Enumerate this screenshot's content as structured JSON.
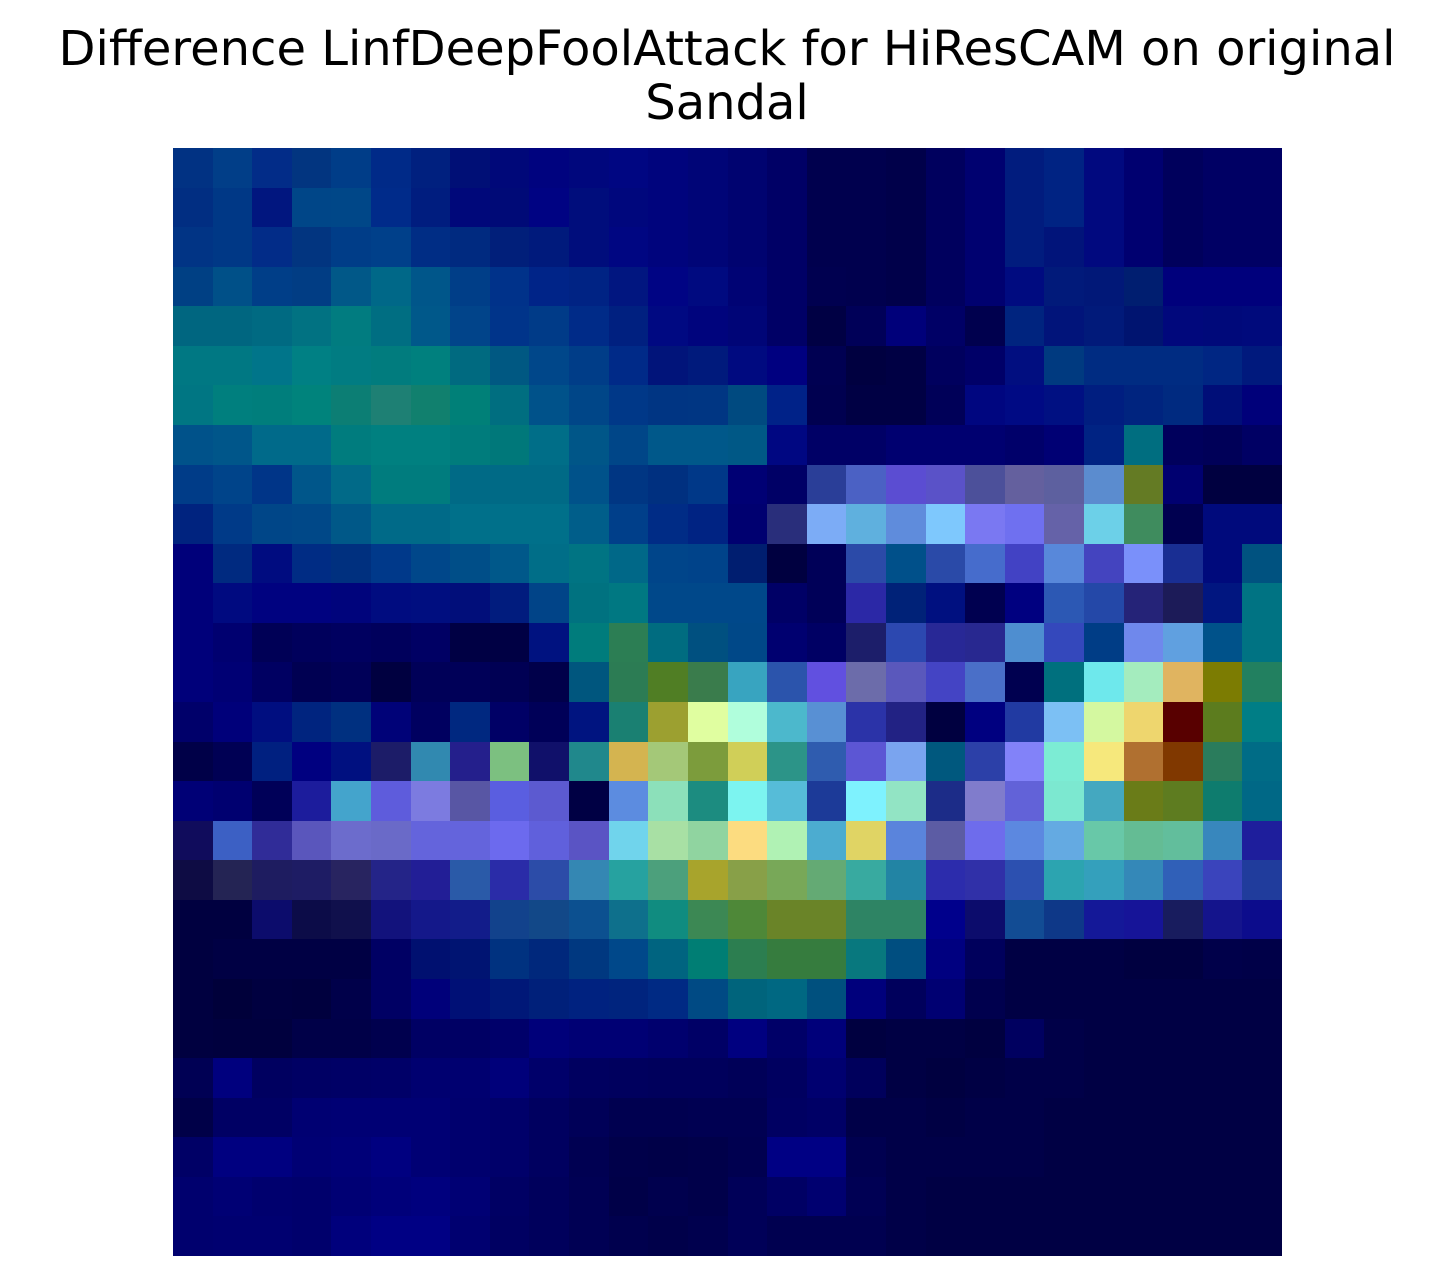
{
  "title": {
    "line1": "Difference LinfDeepFoolAttack for HiResCAM on original",
    "line2": "Sandal"
  },
  "image": {
    "grid_rows": 28,
    "grid_cols": 28,
    "rows": [
      [
        "#013283",
        "#013e88",
        "#022c88",
        "#023580",
        "#003d88",
        "#002a88",
        "#00207f",
        "#000f76",
        "#000879",
        "#00037f",
        "#00077d",
        "#000682",
        "#00047d",
        "#000577",
        "#000370",
        "#000066",
        "#00004e",
        "#00004e",
        "#00004a",
        "#00005e",
        "#000170",
        "#011c7e",
        "#002383",
        "#01097f",
        "#000070",
        "#00005c",
        "#000064",
        "#000064"
      ],
      [
        "#012e82",
        "#003886",
        "#01167f",
        "#004688",
        "#004788",
        "#002b8a",
        "#001d7f",
        "#00087a",
        "#000a77",
        "#000383",
        "#000d7c",
        "#00077d",
        "#00047d",
        "#000577",
        "#000370",
        "#000066",
        "#00004e",
        "#00004e",
        "#00004a",
        "#00005e",
        "#000170",
        "#011c7e",
        "#002383",
        "#01097f",
        "#000070",
        "#00005c",
        "#000064",
        "#000064"
      ],
      [
        "#013485",
        "#003886",
        "#022c88",
        "#023580",
        "#003d88",
        "#00408a",
        "#002d85",
        "#002a80",
        "#011f7a",
        "#001a7c",
        "#000d7c",
        "#000682",
        "#00047d",
        "#000577",
        "#000370",
        "#000066",
        "#00004e",
        "#00004e",
        "#00004a",
        "#00005e",
        "#000170",
        "#011c7e",
        "#01147a",
        "#01097f",
        "#000070",
        "#00005c",
        "#000064",
        "#000064"
      ],
      [
        "#004084",
        "#005088",
        "#003e88",
        "#013d84",
        "#015888",
        "#006888",
        "#00568a",
        "#003e88",
        "#00328a",
        "#002488",
        "#002384",
        "#011680",
        "#000484",
        "#000a80",
        "#000374",
        "#000066",
        "#000050",
        "#00004e",
        "#00004a",
        "#00005e",
        "#000170",
        "#000b80",
        "#011a7a",
        "#011878",
        "#001e70",
        "#00007c",
        "#00007c",
        "#00007c"
      ],
      [
        "#006680",
        "#006680",
        "#006a82",
        "#017282",
        "#017c80",
        "#006e82",
        "#00588a",
        "#01448a",
        "#00348a",
        "#003b88",
        "#002b88",
        "#002080",
        "#000982",
        "#00047d",
        "#000577",
        "#000066",
        "#000044",
        "#000058",
        "#00007a",
        "#000066",
        "#00004e",
        "#00247f",
        "#01147a",
        "#011a7a",
        "#001470",
        "#01087c",
        "#00097a",
        "#000a7c"
      ],
      [
        "#007883",
        "#007883",
        "#00758a",
        "#008084",
        "#017c82",
        "#017c7e",
        "#00807e",
        "#006a80",
        "#005882",
        "#00478a",
        "#003d88",
        "#002a88",
        "#01147a",
        "#001a7c",
        "#000a80",
        "#000080",
        "#000052",
        "#000040",
        "#000044",
        "#00005e",
        "#000068",
        "#010e80",
        "#003a80",
        "#002c82",
        "#002c82",
        "#002c82",
        "#002683",
        "#00197d"
      ],
      [
        "#007683",
        "#007f7e",
        "#007e7c",
        "#00837c",
        "#0c7e74",
        "#1e8074",
        "#11806e",
        "#008078",
        "#006e80",
        "#00528a",
        "#004688",
        "#003888",
        "#003583",
        "#003683",
        "#004a80",
        "#002288",
        "#000050",
        "#000044",
        "#000044",
        "#000058",
        "#000680",
        "#000a84",
        "#001082",
        "#001e80",
        "#00247f",
        "#002a80",
        "#000e78",
        "#00007a"
      ],
      [
        "#00528a",
        "#00568a",
        "#006a8a",
        "#006a8a",
        "#007c7e",
        "#008080",
        "#008080",
        "#007c7c",
        "#00787a",
        "#006e88",
        "#005688",
        "#004688",
        "#00588a",
        "#00588a",
        "#005886",
        "#000782",
        "#000066",
        "#000066",
        "#000070",
        "#000070",
        "#000070",
        "#00006a",
        "#000074",
        "#002383",
        "#006e80",
        "#00005c",
        "#000058",
        "#000064"
      ],
      [
        "#003c88",
        "#00448a",
        "#003588",
        "#00568a",
        "#016a88",
        "#007c7e",
        "#007c7e",
        "#006a86",
        "#006a86",
        "#006a86",
        "#00528a",
        "#003683",
        "#003080",
        "#003888",
        "#000074",
        "#000066",
        "#2a3e98",
        "#4b61c4",
        "#5b4dd2",
        "#5a52c8",
        "#4c509a",
        "#64609e",
        "#5d609f",
        "#5b8ccf",
        "#647b24",
        "#000070",
        "#000040",
        "#000040"
      ],
      [
        "#00237f",
        "#003a88",
        "#004688",
        "#004888",
        "#005888",
        "#006a88",
        "#006a88",
        "#00708a",
        "#00708a",
        "#00708a",
        "#005e8a",
        "#003f8a",
        "#002c86",
        "#002383",
        "#000070",
        "#292e7b",
        "#7cacf6",
        "#5fb0de",
        "#5f8cdc",
        "#7ec8fd",
        "#7a78f2",
        "#6f70f0",
        "#6562a8",
        "#6cd0e8",
        "#3f8c5e",
        "#000050",
        "#000a7c",
        "#000a7c"
      ],
      [
        "#00007a",
        "#002a80",
        "#000c80",
        "#002c84",
        "#00307f",
        "#00398a",
        "#00478a",
        "#004e88",
        "#00588a",
        "#006e88",
        "#007483",
        "#006888",
        "#00458a",
        "#00438a",
        "#001e70",
        "#000040",
        "#000058",
        "#2b4aa8",
        "#00508a",
        "#2a4aa8",
        "#466ccc",
        "#4242c4",
        "#5888da",
        "#4444bf",
        "#7a90fa",
        "#192e93",
        "#000a7c",
        "#005280"
      ],
      [
        "#00007a",
        "#000a80",
        "#000280",
        "#000280",
        "#00047c",
        "#000c80",
        "#000e80",
        "#010e7a",
        "#011c7e",
        "#014488",
        "#007280",
        "#007882",
        "#00488a",
        "#00488a",
        "#00488a",
        "#000066",
        "#000058",
        "#2b28a6",
        "#002278",
        "#001080",
        "#000050",
        "#000080",
        "#2c58b4",
        "#2448a8",
        "#252378",
        "#1c1b58",
        "#011680",
        "#007383"
      ],
      [
        "#00007a",
        "#000070",
        "#000056",
        "#00005c",
        "#000060",
        "#00005c",
        "#000064",
        "#000044",
        "#000044",
        "#001280",
        "#007c7c",
        "#2c7e54",
        "#006c80",
        "#005080",
        "#004888",
        "#000070",
        "#000064",
        "#1c1e6a",
        "#2c48b0",
        "#282896",
        "#282890",
        "#4e8ed0",
        "#3448bc",
        "#003d86",
        "#6f88ec",
        "#60a0e0",
        "#00528a",
        "#007383"
      ],
      [
        "#00007a",
        "#000074",
        "#000062",
        "#000052",
        "#000058",
        "#000040",
        "#000058",
        "#000058",
        "#000054",
        "#00004a",
        "#00567e",
        "#2c7c54",
        "#507e24",
        "#3a7c4c",
        "#38a4c0",
        "#2b54ac",
        "#6150e0",
        "#6c6caa",
        "#5a58bc",
        "#4444c4",
        "#4a6fc8",
        "#000050",
        "#00707e",
        "#6ee8ec",
        "#a4ecbe",
        "#e0b460",
        "#7c7c02",
        "#228060"
      ],
      [
        "#00006a",
        "#00007a",
        "#000e80",
        "#00247f",
        "#003080",
        "#000278",
        "#000060",
        "#002880",
        "#000066",
        "#000058",
        "#001480",
        "#1a8072",
        "#9ca030",
        "#e0fea0",
        "#b0fedc",
        "#4cb8cc",
        "#5890d4",
        "#2b33a8",
        "#222284",
        "#000040",
        "#000080",
        "#213aa2",
        "#7cc0f4",
        "#d4f8a0",
        "#eed66e",
        "#580000",
        "#5c7c1e",
        "#007e86"
      ],
      [
        "#000048",
        "#000054",
        "#002080",
        "#000080",
        "#001080",
        "#1c1c68",
        "#3189b0",
        "#241f8c",
        "#7cc080",
        "#10106a",
        "#20888c",
        "#d4b450",
        "#a4c878",
        "#7c9c3c",
        "#d0cf58",
        "#2c9488",
        "#2f5caf",
        "#5c56d4",
        "#7aa4ef",
        "#00587e",
        "#2c40a8",
        "#8282f9",
        "#7cecd4",
        "#f6e87c",
        "#b07030",
        "#803800",
        "#2a7c5c",
        "#006c86"
      ],
      [
        "#000076",
        "#000070",
        "#000058",
        "#1c1c9c",
        "#44a4cc",
        "#5e5cdc",
        "#7c7be0",
        "#5856a4",
        "#5a5ee0",
        "#5c5ad0",
        "#000044",
        "#5c8ce0",
        "#8ce0ba",
        "#1c8c80",
        "#7cf4f0",
        "#56bcd8",
        "#1c3a98",
        "#7ef2fe",
        "#92e4c4",
        "#1c2c88",
        "#807ccc",
        "#6262d8",
        "#7ce8d0",
        "#44a8c0",
        "#6a7c18",
        "#5e7c20",
        "#0e7c6e",
        "#006886"
      ],
      [
        "#100c5c",
        "#3c60c4",
        "#302c98",
        "#5a56bc",
        "#6c6ccc",
        "#6a6ac8",
        "#6464dc",
        "#6464dc",
        "#6c6aee",
        "#6060dc",
        "#5a54c4",
        "#70d4ec",
        "#a8e0a4",
        "#90d4a0",
        "#fcdc80",
        "#b0f2b4",
        "#4cacd0",
        "#e0d464",
        "#5a84dc",
        "#5c5ca4",
        "#6e6cec",
        "#5c88e0",
        "#64aae2",
        "#68c8a8",
        "#64bc94",
        "#62be9c",
        "#3887bd",
        "#1e1e9c"
      ],
      [
        "#0e0c44",
        "#242454",
        "#1e1c60",
        "#1e1c64",
        "#282460",
        "#242488",
        "#221e96",
        "#2a5aa8",
        "#2a2ca8",
        "#2c4ca8",
        "#3487b3",
        "#26a2a0",
        "#4ca07c",
        "#a8a42c",
        "#88a048",
        "#78a858",
        "#64aa74",
        "#38aaa0",
        "#2284a4",
        "#2c2cac",
        "#3030a8",
        "#2c50b0",
        "#2ca4b0",
        "#34a0bc",
        "#3488b8",
        "#3060b8",
        "#3a44bc",
        "#203c9c"
      ],
      [
        "#000040",
        "#000040",
        "#0c0c6c",
        "#0c0c48",
        "#10104c",
        "#12127c",
        "#14188a",
        "#121c8a",
        "#12428c",
        "#124888",
        "#0c5090",
        "#0e708c",
        "#108c80",
        "#3c8854",
        "#4e8838",
        "#6a8428",
        "#6a8428",
        "#2e8464",
        "#2e8464",
        "#00008c",
        "#0c0c6c",
        "#124c94",
        "#0e3888",
        "#141898",
        "#161498",
        "#181c5e",
        "#14148c",
        "#0c0c8c"
      ],
      [
        "#000040",
        "#000044",
        "#000044",
        "#000044",
        "#000044",
        "#000064",
        "#001070",
        "#001472",
        "#003280",
        "#00287c",
        "#003880",
        "#00488a",
        "#006480",
        "#007e74",
        "#2c7e50",
        "#367c3e",
        "#367c3e",
        "#08787e",
        "#004e80",
        "#000080",
        "#00005c",
        "#000044",
        "#000044",
        "#000044",
        "#000040",
        "#000040",
        "#00004a",
        "#000048"
      ],
      [
        "#000040",
        "#00003a",
        "#000040",
        "#00003e",
        "#00004a",
        "#000064",
        "#00007a",
        "#001076",
        "#001878",
        "#00207a",
        "#002280",
        "#00247e",
        "#002a84",
        "#004a84",
        "#00647c",
        "#006882",
        "#00507e",
        "#00007c",
        "#00005c",
        "#000072",
        "#00004e",
        "#000044",
        "#000044",
        "#000044",
        "#000044",
        "#000044",
        "#000044",
        "#000044"
      ],
      [
        "#000040",
        "#00003e",
        "#00003e",
        "#000048",
        "#000048",
        "#00004e",
        "#000064",
        "#000064",
        "#00006a",
        "#00007a",
        "#000074",
        "#000074",
        "#00006e",
        "#000066",
        "#000080",
        "#000068",
        "#00007a",
        "#000040",
        "#000044",
        "#000044",
        "#000040",
        "#000060",
        "#000048",
        "#000044",
        "#000044",
        "#000044",
        "#000044",
        "#000044"
      ],
      [
        "#000054",
        "#00007e",
        "#000060",
        "#000064",
        "#000066",
        "#000068",
        "#000070",
        "#000070",
        "#00007a",
        "#00006a",
        "#000060",
        "#00005e",
        "#00005c",
        "#00005c",
        "#000058",
        "#000060",
        "#000070",
        "#00005c",
        "#000044",
        "#000040",
        "#000044",
        "#000048",
        "#000048",
        "#000044",
        "#000044",
        "#000044",
        "#000044",
        "#000044"
      ],
      [
        "#000048",
        "#000064",
        "#000064",
        "#000072",
        "#000074",
        "#000074",
        "#000074",
        "#00006e",
        "#00006a",
        "#000060",
        "#000058",
        "#000050",
        "#000050",
        "#000052",
        "#000052",
        "#000062",
        "#000066",
        "#000048",
        "#000048",
        "#000044",
        "#000048",
        "#000048",
        "#000044",
        "#000044",
        "#000044",
        "#000044",
        "#000044",
        "#000044"
      ],
      [
        "#000066",
        "#000080",
        "#000080",
        "#000074",
        "#000078",
        "#000080",
        "#000074",
        "#00006e",
        "#00006a",
        "#000060",
        "#000052",
        "#00004a",
        "#000048",
        "#00004a",
        "#000050",
        "#000084",
        "#000084",
        "#000050",
        "#000048",
        "#000048",
        "#000048",
        "#000048",
        "#000044",
        "#000044",
        "#000044",
        "#000044",
        "#000044",
        "#000044"
      ],
      [
        "#00006e",
        "#000074",
        "#00006e",
        "#00006c",
        "#000074",
        "#00007a",
        "#00007e",
        "#000074",
        "#000064",
        "#00005c",
        "#000054",
        "#000048",
        "#00004e",
        "#00004a",
        "#000058",
        "#000064",
        "#000070",
        "#000054",
        "#000048",
        "#000044",
        "#000044",
        "#000044",
        "#000044",
        "#000044",
        "#000044",
        "#000044",
        "#000044",
        "#000044"
      ],
      [
        "#00006e",
        "#000070",
        "#000070",
        "#00006c",
        "#00007c",
        "#000084",
        "#000084",
        "#000070",
        "#000062",
        "#00005c",
        "#000054",
        "#00004e",
        "#00004a",
        "#00004e",
        "#000058",
        "#000050",
        "#000050",
        "#000050",
        "#000048",
        "#000044",
        "#000044",
        "#000044",
        "#000044",
        "#000044",
        "#000044",
        "#000044",
        "#000044",
        "#000044"
      ]
    ]
  }
}
